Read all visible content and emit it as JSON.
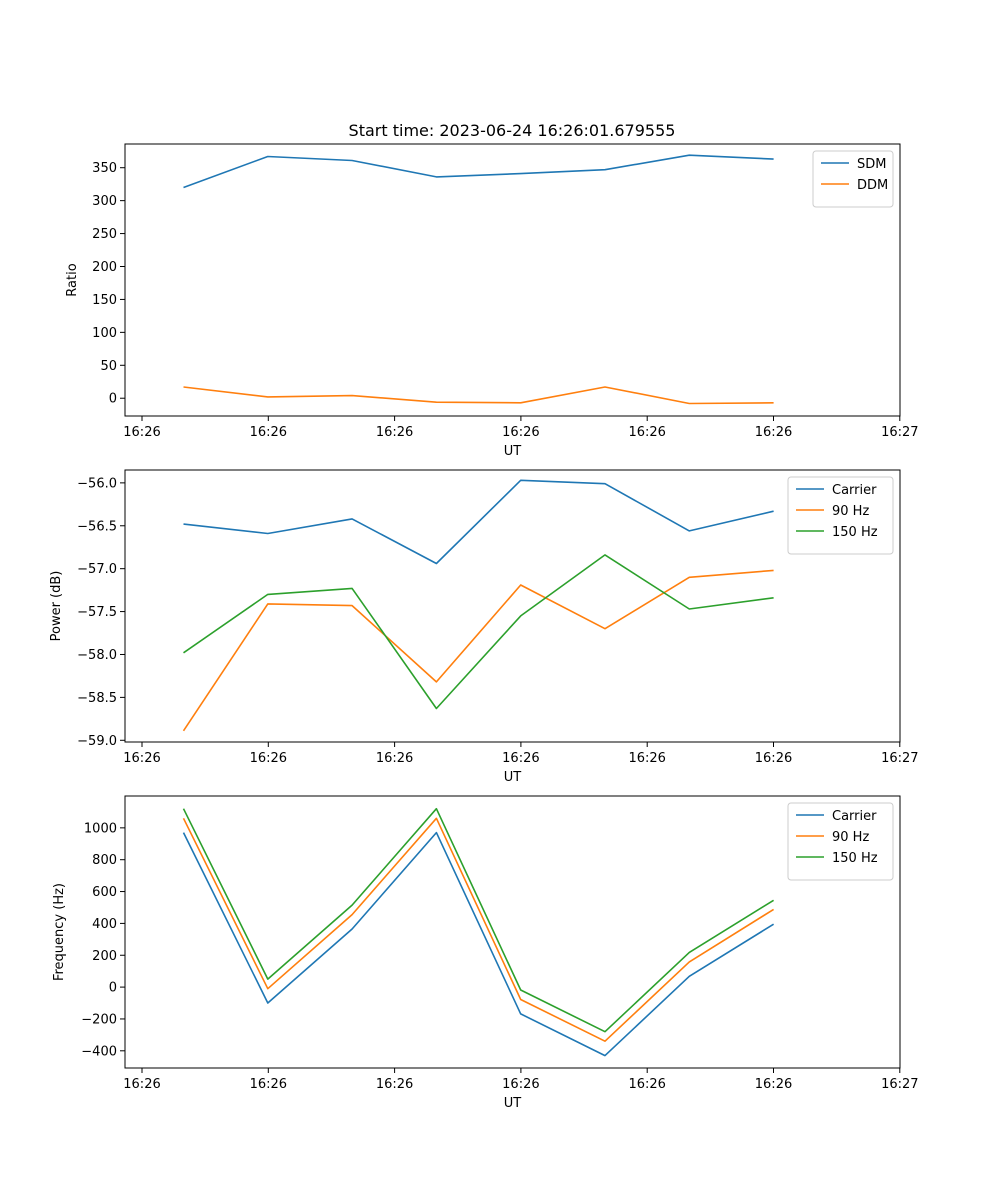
{
  "chart_data": [
    {
      "type": "line",
      "title": "Start time: 2023-06-24 16:26:01.679555",
      "xlabel": "UT",
      "ylabel": "Ratio",
      "x": [
        "16:26:01.68",
        "16:26:02.30",
        "16:26:02.92",
        "16:26:03.54",
        "16:26:04.16",
        "16:26:04.78",
        "16:26:05.40",
        "16:26:06.02"
      ],
      "x_tick_labels": [
        "16:26",
        "16:26",
        "16:26",
        "16:26",
        "16:26",
        "16:26",
        "16:27"
      ],
      "xlim": [
        "16:26:01.25",
        "16:26:06.95"
      ],
      "ylim": [
        -27,
        386
      ],
      "y_ticks": [
        0,
        50,
        100,
        150,
        200,
        250,
        300,
        350
      ],
      "grid": false,
      "legend_position": "upper right",
      "series": [
        {
          "name": "SDM",
          "color": "#1f77b4",
          "values": [
            320,
            367,
            361,
            336,
            341,
            347,
            369,
            363
          ]
        },
        {
          "name": "DDM",
          "color": "#ff7f0e",
          "values": [
            17,
            2,
            4,
            -6,
            -7,
            17,
            -8,
            -7
          ]
        }
      ]
    },
    {
      "type": "line",
      "title": "",
      "xlabel": "UT",
      "ylabel": "Power (dB)",
      "x": [
        "16:26:01.68",
        "16:26:02.30",
        "16:26:02.92",
        "16:26:03.54",
        "16:26:04.16",
        "16:26:04.78",
        "16:26:05.40",
        "16:26:06.02"
      ],
      "x_tick_labels": [
        "16:26",
        "16:26",
        "16:26",
        "16:26",
        "16:26",
        "16:26",
        "16:27"
      ],
      "xlim": [
        "16:26:01.25",
        "16:26:06.95"
      ],
      "ylim": [
        -59.02,
        -55.85
      ],
      "y_ticks": [
        -59.0,
        -58.5,
        -58.0,
        -57.5,
        -57.0,
        -56.5,
        -56.0
      ],
      "grid": false,
      "legend_position": "upper right",
      "series": [
        {
          "name": "Carrier",
          "color": "#1f77b4",
          "values": [
            -56.48,
            -56.59,
            -56.42,
            -56.94,
            -55.97,
            -56.01,
            -56.56,
            -56.33
          ]
        },
        {
          "name": "90 Hz",
          "color": "#ff7f0e",
          "values": [
            -58.89,
            -57.41,
            -57.43,
            -58.32,
            -57.19,
            -57.7,
            -57.1,
            -57.02
          ]
        },
        {
          "name": "150 Hz",
          "color": "#2ca02c",
          "values": [
            -57.98,
            -57.3,
            -57.23,
            -58.63,
            -57.55,
            -56.84,
            -57.47,
            -57.34
          ]
        }
      ]
    },
    {
      "type": "line",
      "title": "",
      "xlabel": "UT",
      "ylabel": "Frequency (Hz)",
      "x": [
        "16:26:01.68",
        "16:26:02.30",
        "16:26:02.92",
        "16:26:03.54",
        "16:26:04.16",
        "16:26:04.78",
        "16:26:05.40",
        "16:26:06.02"
      ],
      "x_tick_labels": [
        "16:26",
        "16:26",
        "16:26",
        "16:26",
        "16:26",
        "16:26",
        "16:27"
      ],
      "xlim": [
        "16:26:01.25",
        "16:26:06.95"
      ],
      "ylim": [
        -508,
        1200
      ],
      "y_ticks": [
        -400,
        -200,
        0,
        200,
        400,
        600,
        800,
        1000
      ],
      "grid": false,
      "legend_position": "upper right",
      "series": [
        {
          "name": "Carrier",
          "color": "#1f77b4",
          "values": [
            970,
            -100,
            365,
            970,
            -168,
            -430,
            68,
            395
          ]
        },
        {
          "name": "90 Hz",
          "color": "#ff7f0e",
          "values": [
            1060,
            -10,
            455,
            1060,
            -78,
            -340,
            158,
            488
          ]
        },
        {
          "name": "150 Hz",
          "color": "#2ca02c",
          "values": [
            1120,
            50,
            515,
            1120,
            -18,
            -280,
            218,
            545
          ]
        }
      ]
    }
  ]
}
